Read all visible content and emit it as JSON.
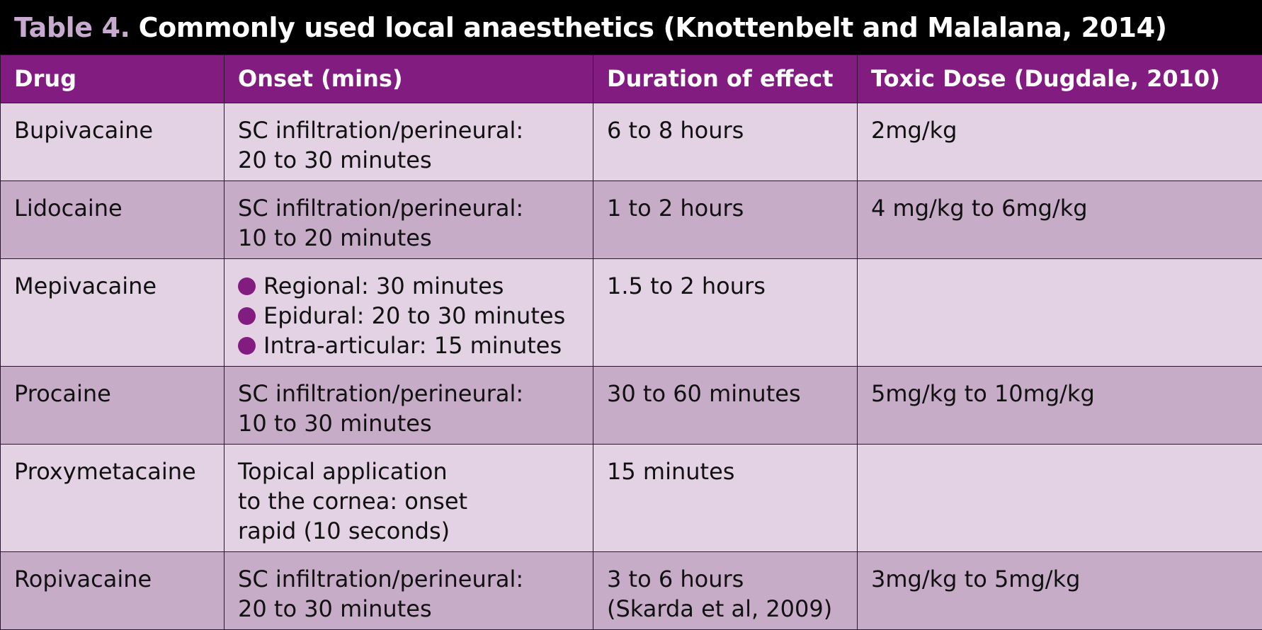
{
  "title": {
    "label": "Table 4.",
    "text": "Commonly used local anaesthetics (Knottenbelt and Malalana, 2014)"
  },
  "columns": [
    "Drug",
    "Onset (mins)",
    "Duration of effect",
    "Toxic Dose (Dugdale, 2010)"
  ],
  "rows": [
    {
      "drug": "Bupivacaine",
      "onset": [
        "SC infiltration/perineural:",
        "20 to 30 minutes"
      ],
      "duration": [
        "6 to 8 hours"
      ],
      "toxic": "2mg/kg"
    },
    {
      "drug": "Lidocaine",
      "onset": [
        "SC infiltration/perineural:",
        "10 to 20 minutes"
      ],
      "duration": [
        "1 to 2 hours"
      ],
      "toxic": "4 mg/kg to 6mg/kg"
    },
    {
      "drug": "Mepivacaine",
      "onset_bullets": [
        "Regional: 30 minutes",
        "Epidural: 20 to 30 minutes",
        "Intra-articular: 15 minutes"
      ],
      "duration": [
        "1.5 to 2 hours"
      ],
      "toxic": ""
    },
    {
      "drug": "Procaine",
      "onset": [
        "SC infiltration/perineural:",
        "10 to 30 minutes"
      ],
      "duration": [
        "30 to 60 minutes"
      ],
      "toxic": "5mg/kg to 10mg/kg"
    },
    {
      "drug": "Proxymetacaine",
      "onset": [
        "Topical application",
        "to the cornea: onset",
        "rapid (10 seconds)"
      ],
      "duration": [
        "15 minutes"
      ],
      "toxic": ""
    },
    {
      "drug": "Ropivacaine",
      "onset": [
        "SC infiltration/perineural:",
        "20 to 30 minutes"
      ],
      "duration": [
        "3 to 6 hours",
        "(Skarda et al, 2009)"
      ],
      "toxic": "3mg/kg to 5mg/kg"
    }
  ],
  "colors": {
    "header_bg": "#821c80",
    "row_light": "#e2d2e3",
    "row_dark": "#c7acc8",
    "title_label": "#c8a9cf",
    "bullet": "#821c80"
  },
  "icons": {
    "bullet": "filled-circle-bullet-icon"
  }
}
